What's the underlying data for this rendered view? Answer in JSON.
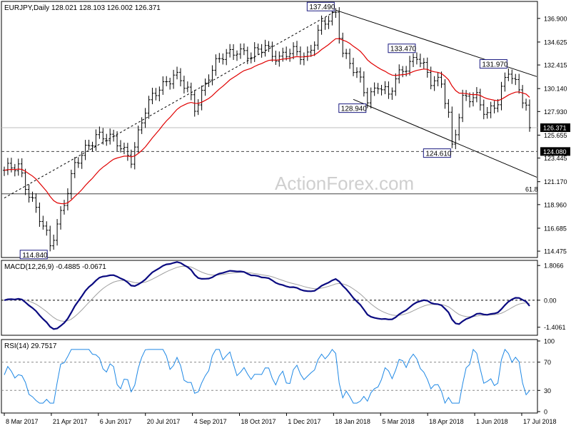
{
  "chart_data": {
    "type": "candlestick",
    "panels": [
      {
        "id": "price",
        "header": "EURJPY,Daily  128.021 128.103 126.002 126.371",
        "ylim": [
          114.0,
          138.4
        ],
        "yticks": [
          "136.900",
          "134.625",
          "132.415",
          "130.140",
          "127.930",
          "125.655",
          "123.445",
          "121.170",
          "118.960",
          "116.685",
          "114.475"
        ],
        "ytick_values": [
          136.9,
          134.625,
          132.415,
          130.14,
          127.93,
          125.655,
          123.445,
          121.17,
          118.96,
          116.685,
          114.475
        ],
        "last_price": "126.371",
        "last_price_value": 126.371,
        "level_124": "124.080",
        "level_124_value": 124.08,
        "fib_label": "61.8",
        "fib_value": 120.0,
        "annotations": [
          {
            "label": "137.490",
            "value": 137.49
          },
          {
            "label": "133.470",
            "value": 133.47
          },
          {
            "label": "131.970",
            "value": 131.97
          },
          {
            "label": "128.940",
            "value": 128.94
          },
          {
            "label": "124.610",
            "value": 124.61
          },
          {
            "label": "114.840",
            "value": 114.84
          }
        ]
      },
      {
        "id": "macd",
        "header": "MACD(12,26,9) -0.4885 -0.0671",
        "ylim": [
          -1.75,
          2.0
        ],
        "yticks": [
          "1.8066",
          "0.00",
          "-1.4061"
        ],
        "ytick_values": [
          1.8066,
          0.0,
          -1.4061
        ]
      },
      {
        "id": "rsi",
        "header": "RSI(14) 29.7517",
        "ylim": [
          0,
          100
        ],
        "yticks": [
          "100",
          "70",
          "30",
          "0"
        ],
        "ytick_values": [
          100,
          70,
          30,
          0
        ]
      }
    ],
    "xticks": [
      "8 Mar 2017",
      "21 Apr 2017",
      "6 Jun 2017",
      "20 Jul 2017",
      "4 Sep 2017",
      "18 Oct 2017",
      "1 Dec 2017",
      "18 Jan 2018",
      "5 Mar 2018",
      "18 Apr 2018",
      "1 Jun 2018",
      "17 Jul 2018"
    ],
    "watermark": "ActionForex.com",
    "colors": {
      "price": "#000000",
      "ma": "#e00000",
      "macd": "#0a0a80",
      "signal": "#a0a0a0",
      "rsi": "#1e88e5",
      "level": "#444444"
    }
  }
}
